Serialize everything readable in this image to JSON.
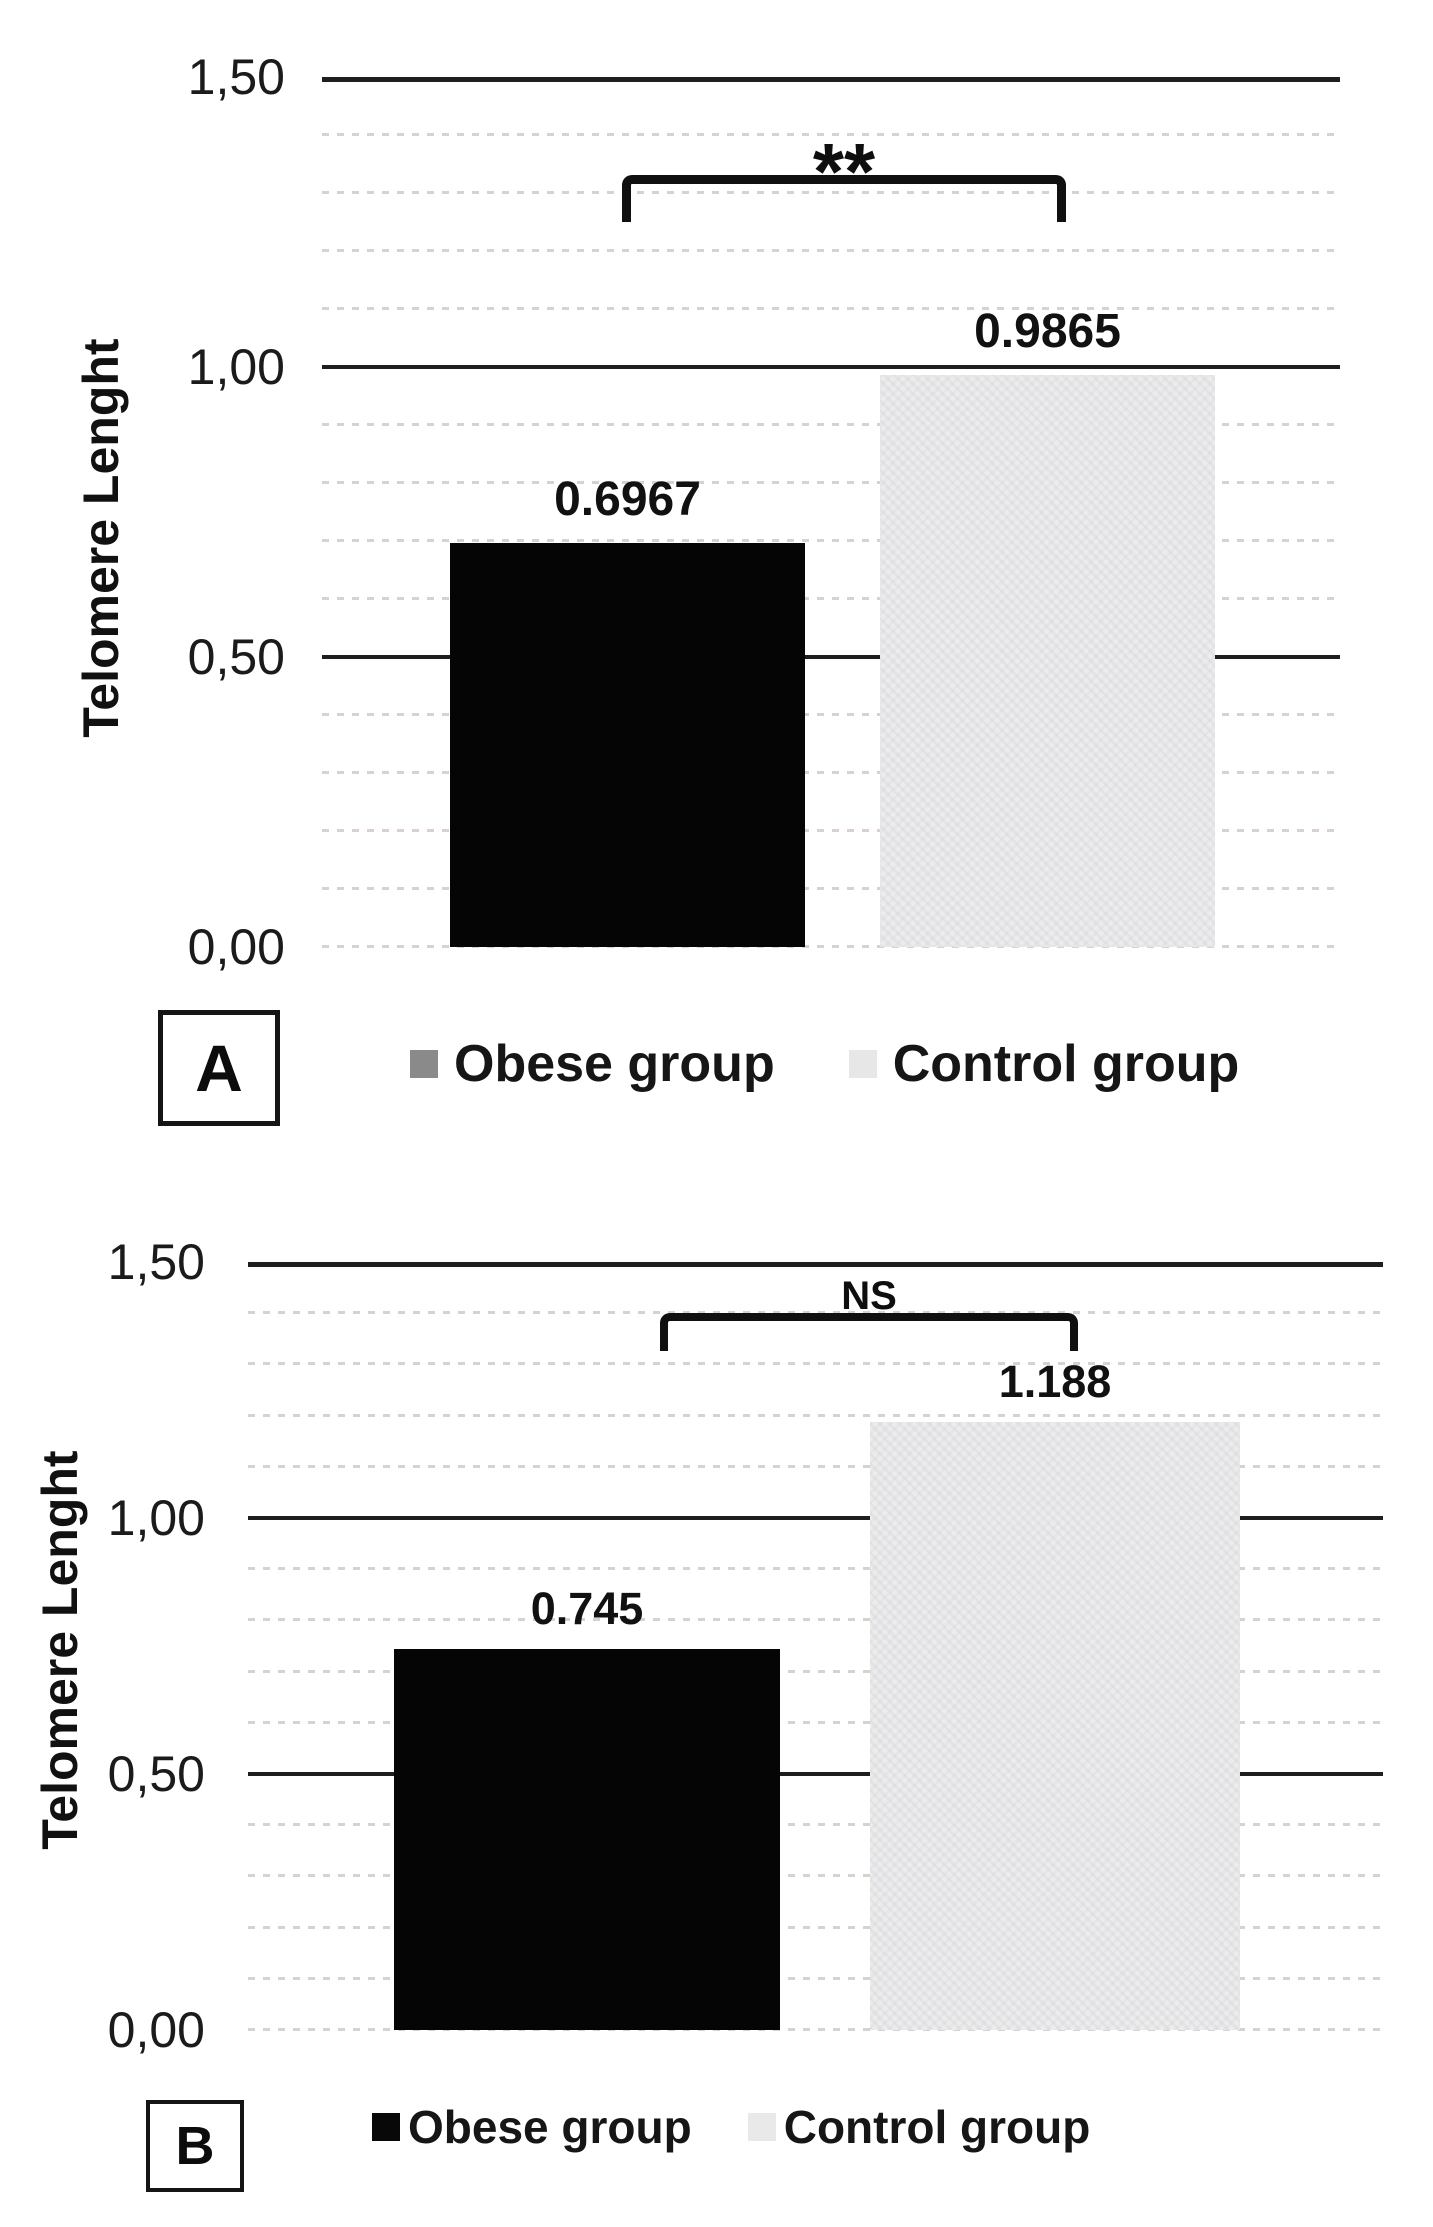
{
  "figure": {
    "description": "Two-panel bar chart comparing telomere length between obese and control groups",
    "background": "#ffffff"
  },
  "chart_data": [
    {
      "type": "bar",
      "panel_label": "A",
      "title": "",
      "ylabel": "Telomere Lenght",
      "xlabel": "",
      "ylim": [
        0,
        1.5
      ],
      "ytick_values_top_to_bottom": [
        1.5,
        1.0,
        0.5,
        0.0
      ],
      "ytick_labels": [
        "1,50",
        "1,00",
        "0,50",
        "0,00"
      ],
      "categories": [
        "Obese group",
        "Control group"
      ],
      "values": [
        0.6967,
        0.9865
      ],
      "value_labels": [
        "0.6967",
        "0.9865"
      ],
      "bar_colors": [
        "#050505",
        "#ececec"
      ],
      "significance": "**",
      "grid": "minor dotted every 0.1, major solid every 0.5",
      "legend_position": "bottom",
      "legend": [
        {
          "label": "Obese group",
          "swatch": "#8a8a8a"
        },
        {
          "label": "Control group",
          "swatch": "#e7e7e7"
        }
      ]
    },
    {
      "type": "bar",
      "panel_label": "B",
      "title": "",
      "ylabel": "Telomere Lenght",
      "xlabel": "",
      "ylim": [
        0,
        1.5
      ],
      "ytick_values_top_to_bottom": [
        1.5,
        1.0,
        0.5,
        0.0
      ],
      "ytick_labels": [
        "1,50",
        "1,00",
        "0,50",
        "0,00"
      ],
      "categories": [
        "Obese group",
        "Control group"
      ],
      "values": [
        0.745,
        1.188
      ],
      "value_labels": [
        "0.745",
        "1.188"
      ],
      "bar_colors": [
        "#050505",
        "#ececec"
      ],
      "significance": "NS",
      "grid": "minor dotted every 0.1, major solid every 0.5",
      "legend_position": "bottom",
      "legend": [
        {
          "label": "Obese group",
          "swatch": "#080808"
        },
        {
          "label": "Control group",
          "swatch": "#e9e9e9"
        }
      ]
    }
  ]
}
